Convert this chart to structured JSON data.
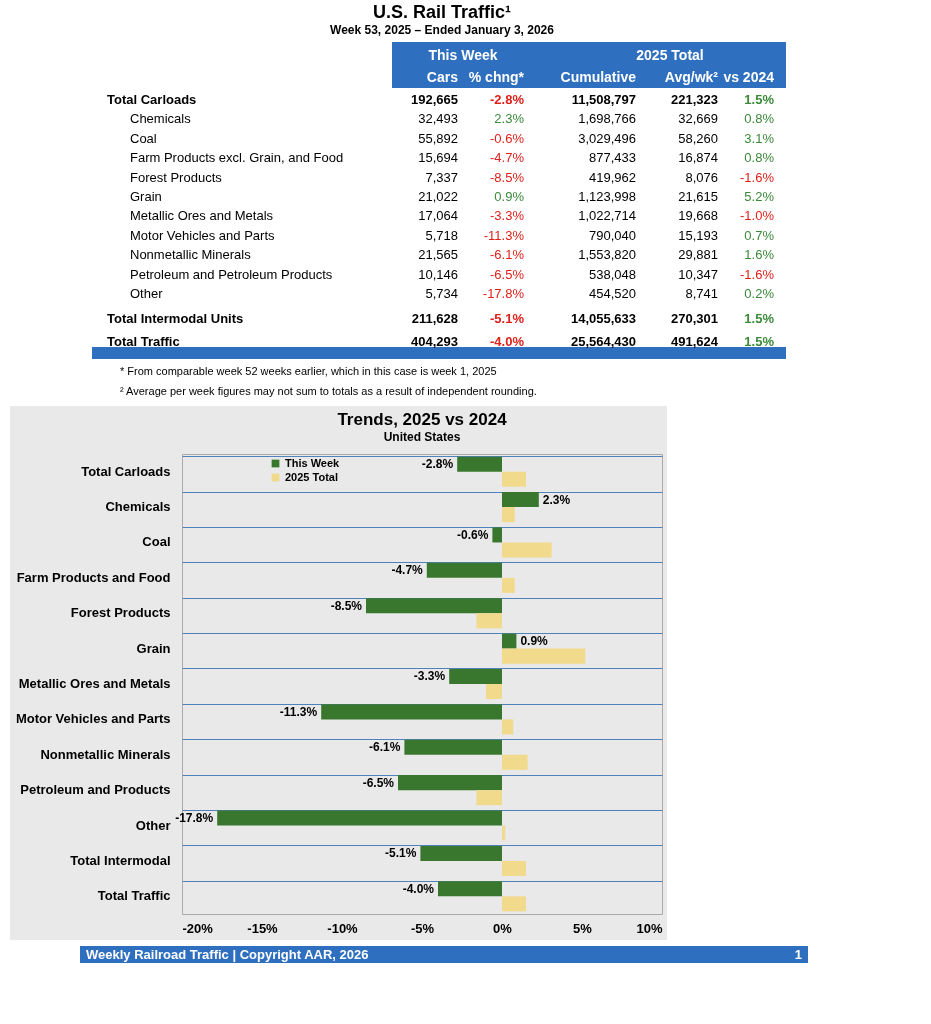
{
  "chart_data": [
    {
      "type": "other",
      "title": "U.S. Rail Traffic¹",
      "subtitle": "Week 53, 2025 – Ended January 3, 2026",
      "categories": [
        "Total Carloads",
        "Chemicals",
        "Coal",
        "Farm Products excl. Grain, and Food",
        "Forest Products",
        "Grain",
        "Metallic Ores and Metals",
        "Motor Vehicles and Parts",
        "Nonmetallic Minerals",
        "Petroleum and Petroleum Products",
        "Other",
        "Total Intermodal Units",
        "Total Traffic"
      ],
      "series": [
        {
          "name": "Cars",
          "values": [
            192665,
            32493,
            55892,
            15694,
            7337,
            21022,
            17064,
            5718,
            21565,
            10146,
            5734,
            211628,
            404293
          ],
          "value_labels": [
            "192,665",
            "32,493",
            "55,892",
            "15,694",
            "7,337",
            "21,022",
            "17,064",
            "5,718",
            "21,565",
            "10,146",
            "5,734",
            "211,628",
            "404,293"
          ]
        },
        {
          "name": "% chng*",
          "values": [
            -2.8,
            2.3,
            -0.6,
            -4.7,
            -8.5,
            0.9,
            -3.3,
            -11.3,
            -6.1,
            -6.5,
            -17.8,
            -5.1,
            -4.0
          ],
          "value_labels": [
            "-2.8%",
            "2.3%",
            "-0.6%",
            "-4.7%",
            "-8.5%",
            "0.9%",
            "-3.3%",
            "-11.3%",
            "-6.1%",
            "-6.5%",
            "-17.8%",
            "-5.1%",
            "-4.0%"
          ]
        },
        {
          "name": "Cumulative",
          "values": [
            11508797,
            1698766,
            3029496,
            877433,
            419962,
            1123998,
            1022714,
            790040,
            1553820,
            538048,
            454520,
            14055633,
            25564430
          ],
          "value_labels": [
            "11,508,797",
            "1,698,766",
            "3,029,496",
            "877,433",
            "419,962",
            "1,123,998",
            "1,022,714",
            "790,040",
            "1,553,820",
            "538,048",
            "454,520",
            "14,055,633",
            "25,564,430"
          ]
        },
        {
          "name": "Avg/wk²",
          "values": [
            221323,
            32669,
            58260,
            16874,
            8076,
            21615,
            19668,
            15193,
            29881,
            10347,
            8741,
            270301,
            491624
          ],
          "value_labels": [
            "221,323",
            "32,669",
            "58,260",
            "16,874",
            "8,076",
            "21,615",
            "19,668",
            "15,193",
            "29,881",
            "10,347",
            "8,741",
            "270,301",
            "491,624"
          ]
        },
        {
          "name": "vs 2024",
          "values": [
            1.5,
            0.8,
            3.1,
            0.8,
            -1.6,
            5.2,
            -1.0,
            0.7,
            1.6,
            -1.6,
            0.2,
            1.5,
            1.5
          ],
          "value_labels": [
            "1.5%",
            "0.8%",
            "3.1%",
            "0.8%",
            "-1.6%",
            "5.2%",
            "-1.0%",
            "0.7%",
            "1.6%",
            "-1.6%",
            "0.2%",
            "1.5%",
            "1.5%"
          ]
        }
      ],
      "annotations": [
        "This Week",
        "2025 Total",
        "* From comparable week 52 weeks earlier, which in this case is week 1, 2025",
        "² Average per week figures may not sum to totals as a result of independent rounding."
      ]
    },
    {
      "type": "bar",
      "orientation": "horizontal",
      "title": "Trends, 2025 vs 2024",
      "subtitle": "United States",
      "categories": [
        "Total Carloads",
        "Chemicals",
        "Coal",
        "Farm Products and Food",
        "Forest Products",
        "Grain",
        "Metallic Ores and Metals",
        "Motor Vehicles and Parts",
        "Nonmetallic Minerals",
        "Petroleum and Products",
        "Other",
        "Total Intermodal",
        "Total Traffic"
      ],
      "series": [
        {
          "name": "This Week",
          "color": "#38772d",
          "values": [
            -2.8,
            2.3,
            -0.6,
            -4.7,
            -8.5,
            0.9,
            -3.3,
            -11.3,
            -6.1,
            -6.5,
            -17.8,
            -5.1,
            -4.0
          ],
          "value_labels": [
            "-2.8%",
            "2.3%",
            "-0.6%",
            "-4.7%",
            "-8.5%",
            "0.9%",
            "-3.3%",
            "-11.3%",
            "-6.1%",
            "-6.5%",
            "-17.8%",
            "-5.1%",
            "-4.0%"
          ]
        },
        {
          "name": "2025 Total",
          "color": "#f1da8c",
          "values": [
            1.5,
            0.8,
            3.1,
            0.8,
            -1.6,
            5.2,
            -1.0,
            0.7,
            1.6,
            -1.6,
            0.2,
            1.5,
            1.5
          ]
        }
      ],
      "xlim": [
        -20,
        10
      ],
      "xticks": [
        {
          "value": -20,
          "label": "-20%"
        },
        {
          "value": -15,
          "label": "-15%"
        },
        {
          "value": -10,
          "label": "-10%"
        },
        {
          "value": -5,
          "label": "-5%"
        },
        {
          "value": 0,
          "label": "0%"
        },
        {
          "value": 5,
          "label": "5%"
        },
        {
          "value": 10,
          "label": "10%"
        }
      ],
      "grid": "y",
      "legend": "top left",
      "annotations": [
        "Weekly Railroad Traffic | Copyright AAR, 2026",
        "1"
      ]
    }
  ]
}
